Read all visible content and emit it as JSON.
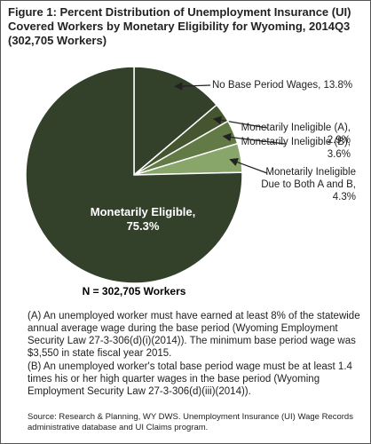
{
  "chart_data": {
    "type": "pie",
    "title": "Figure 1: Percent Distribution of Unemployment Insurance (UI) Covered Workers by Monetary Eligibility for Wyoming, 2014Q3 (302,705 Workers)",
    "categories": [
      "No Base Period Wages,",
      "Monetarily Ineligible (A),",
      "Monetarily Ineligible (B),",
      "Monetarily Ineligible Due to Both A and B,",
      "Monetarily Eligible,"
    ],
    "values": [
      13.8,
      2.9,
      3.6,
      4.3,
      75.3
    ],
    "value_labels": [
      "13.8%",
      "2.9%",
      "3.6%",
      "4.3%",
      "75.3%"
    ],
    "colors": [
      "#33402a",
      "#45552f",
      "#627a45",
      "#88a56a",
      "#33402a"
    ],
    "total_label": "N = 302,705 Workers",
    "notes": [
      "(A) An unemployed worker must have earned at least 8% of the statewide annual average wage during the base period (Wyoming Employment Security Law 27-3-306(d)(i)(2014)). The minimum base period wage was $3,550 in state fiscal year 2015.",
      "(B) An unemployed worker's total base period wage must be at least 1.4 times his or her high quarter wages in the base period (Wyoming Employment Security Law 27-3-306(d)(iii)(2014))."
    ],
    "source": "Source: Research & Planning, WY DWS. Unemployment Insurance (UI) Wage Records administrative database and UI Claims program."
  }
}
